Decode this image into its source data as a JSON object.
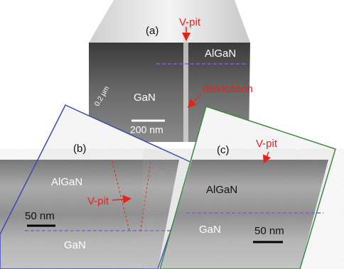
{
  "panels": [
    {
      "label": "(a)",
      "texts": [
        "V-pit",
        "AlGaN",
        "GaN",
        "dislocation",
        "200 nm",
        "0.2 µm"
      ]
    },
    {
      "label": "(b)",
      "texts": [
        "AlGaN",
        "V-pit",
        "50 nm",
        "GaN"
      ]
    },
    {
      "label": "(c)",
      "texts": [
        "V-pit",
        "AlGaN",
        "GaN",
        "50 nm"
      ]
    }
  ]
}
